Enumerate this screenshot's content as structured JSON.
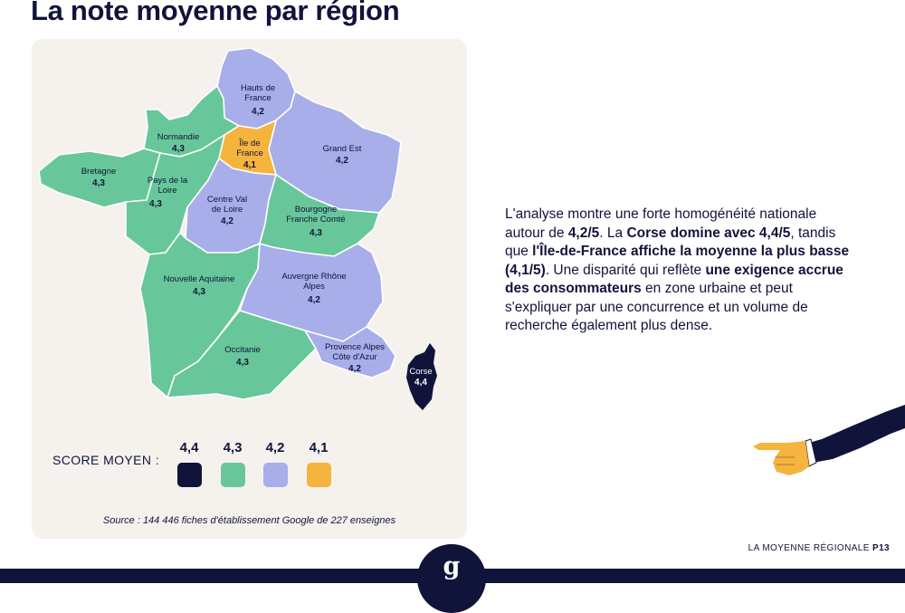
{
  "title": "La note moyenne par région",
  "colors": {
    "s44": "#11143a",
    "s43": "#67c79a",
    "s42": "#a7aee9",
    "s41": "#f4b43d",
    "card": "#f5f2ee"
  },
  "regions": {
    "hauts_de_france": {
      "name_line1": "Hauts de",
      "name_line2": "France",
      "score": "4,2"
    },
    "normandie": {
      "name": "Normandie",
      "score": "4,3"
    },
    "ile_de_france": {
      "name_line1": "Île de",
      "name_line2": "France",
      "score": "4,1"
    },
    "grand_est": {
      "name": "Grand Est",
      "score": "4,2"
    },
    "bretagne": {
      "name": "Bretagne",
      "score": "4,3"
    },
    "pays_de_la_loire": {
      "name_line1": "Pays de la",
      "name_line2": "Loire",
      "score": "4,3"
    },
    "centre_val_de_loire": {
      "name_line1": "Centre Val",
      "name_line2": "de Loire",
      "score": "4,2"
    },
    "bourgogne_franche_comte": {
      "name_line1": "Bourgogne",
      "name_line2": "Franche Comté",
      "score": "4,3"
    },
    "nouvelle_aquitaine": {
      "name": "Nouvelle Aquitaine",
      "score": "4,3"
    },
    "auvergne_rhone_alpes": {
      "name_line1": "Auvergne Rhône",
      "name_line2": "Alpes",
      "score": "4,2"
    },
    "occitanie": {
      "name": "Occitanie",
      "score": "4,3"
    },
    "provence_alpes_cote_dazur": {
      "name_line1": "Provence Alpes",
      "name_line2": "Côte d'Azur",
      "score": "4,2"
    },
    "corse": {
      "name": "Corse",
      "score": "4,4"
    }
  },
  "legend": {
    "title": "SCORE MOYEN :",
    "items": [
      {
        "value": "4,4",
        "color": "#11143a"
      },
      {
        "value": "4,3",
        "color": "#67c79a"
      },
      {
        "value": "4,2",
        "color": "#a7aee9"
      },
      {
        "value": "4,1",
        "color": "#f4b43d"
      }
    ]
  },
  "source": "Source : 144 446 fiches d'établissement Google de 227 enseignes",
  "analysis": {
    "t1": "L'analyse montre une forte homogénéité nationale autour de ",
    "b1": "4,2/5",
    "t2": ". La ",
    "b2": "Corse domine avec 4,4/5",
    "t3": ", tandis que ",
    "b3": "l'Île-de-France affiche la moyenne la plus basse (4,1/5)",
    "t4": ". Une disparité qui reflète ",
    "b4": "une exigence accrue des consommateurs",
    "t5": " en zone urbaine et peut s'expliquer par une concurrence et un volume de recherche également plus dense."
  },
  "footer": {
    "label": "LA MOYENNE RÉGIONALE",
    "page": "P13",
    "logo_letter": "g"
  }
}
